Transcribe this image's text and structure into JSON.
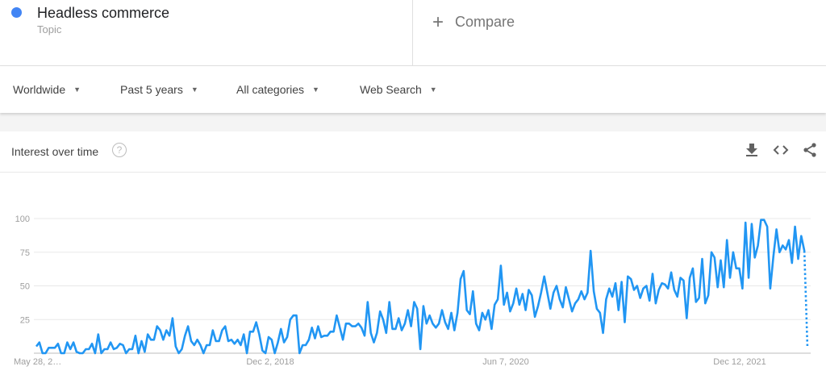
{
  "search_term": {
    "label": "Headless commerce",
    "type": "Topic",
    "color": "#4285f4"
  },
  "compare": {
    "icon": "plus-icon",
    "label": "Compare"
  },
  "filters": [
    {
      "label": "Worldwide"
    },
    {
      "label": "Past 5 years"
    },
    {
      "label": "All categories"
    },
    {
      "label": "Web Search"
    }
  ],
  "card": {
    "title": "Interest over time",
    "help_icon": "?",
    "actions": [
      "download-icon",
      "embed-code-icon",
      "share-icon"
    ]
  },
  "chart_data": {
    "type": "line",
    "title": "",
    "xlabel": "",
    "ylabel": "",
    "ylim": [
      0,
      100
    ],
    "y_ticks": [
      "100",
      "75",
      "50",
      "25"
    ],
    "x_ticks": [
      "May 28, 2…",
      "Dec 2, 2018",
      "Jun 7, 2020",
      "Dec 12, 2021"
    ],
    "grid": true,
    "legend": "none",
    "line_color": "#2196f3",
    "last_segment": "dotted (partial data)",
    "series": [
      {
        "values": [
          5,
          8,
          0,
          0,
          4,
          4,
          4,
          7,
          0,
          0,
          8,
          3,
          8,
          1,
          0,
          0,
          3,
          3,
          7,
          0,
          14,
          0,
          3,
          3,
          8,
          3,
          4,
          7,
          6,
          0,
          3,
          3,
          13,
          0,
          9,
          1,
          14,
          10,
          10,
          20,
          17,
          10,
          17,
          13,
          26,
          5,
          0,
          3,
          13,
          20,
          9,
          6,
          10,
          6,
          0,
          6,
          6,
          17,
          9,
          9,
          17,
          20,
          9,
          10,
          7,
          10,
          6,
          14,
          0,
          16,
          16,
          23,
          14,
          2,
          0,
          12,
          10,
          0,
          8,
          18,
          8,
          12,
          25,
          28,
          28,
          0,
          6,
          6,
          10,
          19,
          11,
          20,
          12,
          13,
          13,
          16,
          16,
          28,
          19,
          10,
          22,
          22,
          20,
          20,
          22,
          19,
          13,
          38,
          15,
          8,
          15,
          31,
          25,
          15,
          38,
          18,
          18,
          26,
          17,
          22,
          32,
          20,
          38,
          33,
          3,
          35,
          22,
          28,
          22,
          19,
          22,
          32,
          23,
          18,
          30,
          17,
          30,
          55,
          61,
          32,
          29,
          46,
          22,
          17,
          30,
          25,
          32,
          18,
          36,
          40,
          65,
          36,
          45,
          31,
          37,
          48,
          36,
          44,
          32,
          47,
          43,
          27,
          35,
          45,
          57,
          45,
          33,
          45,
          50,
          40,
          34,
          49,
          40,
          31,
          37,
          40,
          46,
          40,
          45,
          76,
          46,
          33,
          30,
          15,
          40,
          48,
          42,
          52,
          32,
          53,
          23,
          57,
          55,
          47,
          50,
          41,
          48,
          50,
          39,
          59,
          37,
          47,
          52,
          51,
          48,
          60,
          47,
          42,
          56,
          54,
          26,
          56,
          63,
          38,
          41,
          70,
          37,
          43,
          75,
          71,
          49,
          69,
          49,
          84,
          56,
          75,
          63,
          63,
          48,
          97,
          56,
          96,
          71,
          80,
          99,
          99,
          94,
          48,
          72,
          92,
          75,
          80,
          77,
          84,
          67,
          94,
          70,
          87,
          76,
          4
        ]
      }
    ]
  }
}
